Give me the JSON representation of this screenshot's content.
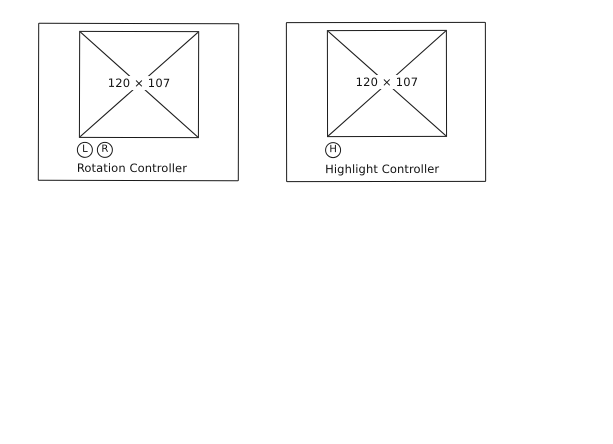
{
  "rotation_controller": {
    "placeholder_label": "120 × 107",
    "buttons": [
      {
        "label": "L"
      },
      {
        "label": "R"
      }
    ],
    "caption": "Rotation Controller"
  },
  "highlight_controller": {
    "placeholder_label": "120 × 107",
    "buttons": [
      {
        "label": "H"
      }
    ],
    "caption": "Highlight Controller"
  }
}
